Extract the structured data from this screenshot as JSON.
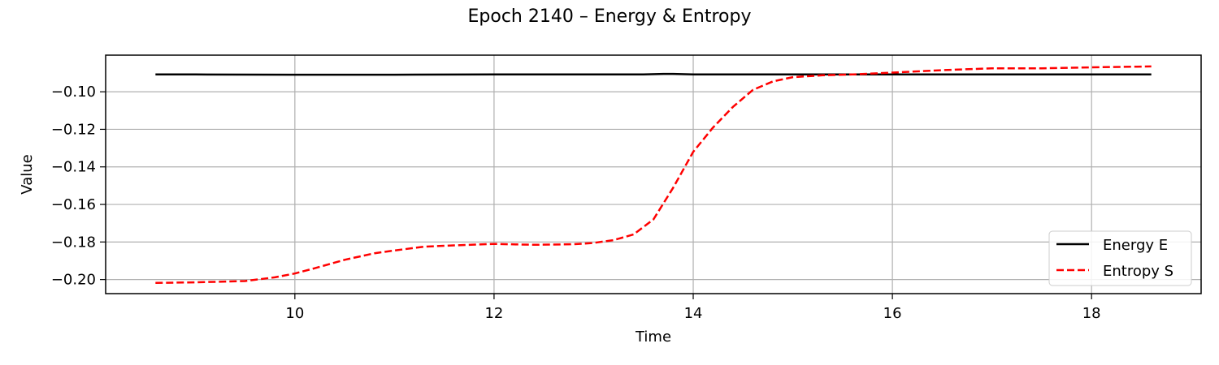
{
  "chart_data": {
    "type": "line",
    "title": "Epoch 2140 – Energy & Entropy",
    "xlabel": "Time",
    "ylabel": "Value",
    "xlim": [
      8.1,
      19.1
    ],
    "ylim": [
      -0.2075,
      -0.0805
    ],
    "xticks": [
      10,
      12,
      14,
      16,
      18
    ],
    "xtick_labels": [
      "10",
      "12",
      "14",
      "16",
      "18"
    ],
    "yticks": [
      -0.2,
      -0.18,
      -0.16,
      -0.14,
      -0.12,
      -0.1
    ],
    "ytick_labels": [
      "−0.20",
      "−0.18",
      "−0.16",
      "−0.14",
      "−0.12",
      "−0.10"
    ],
    "grid": true,
    "legend_position": "lower-right",
    "series": [
      {
        "name": "Energy E",
        "color": "#000000",
        "style": "solid",
        "x": [
          8.6,
          9.0,
          10.0,
          11.0,
          12.0,
          13.0,
          13.5,
          13.7,
          13.8,
          14.0,
          15.0,
          16.0,
          17.0,
          18.0,
          18.6
        ],
        "y": [
          -0.0908,
          -0.0908,
          -0.0909,
          -0.0909,
          -0.0908,
          -0.0908,
          -0.0908,
          -0.0905,
          -0.0905,
          -0.0908,
          -0.0908,
          -0.0908,
          -0.0908,
          -0.0908,
          -0.0908
        ]
      },
      {
        "name": "Entropy S",
        "color": "#ff0000",
        "style": "dashed",
        "x": [
          8.6,
          9.0,
          9.5,
          9.8,
          10.0,
          10.2,
          10.5,
          10.8,
          11.0,
          11.3,
          11.6,
          12.0,
          12.4,
          12.8,
          13.0,
          13.2,
          13.4,
          13.6,
          13.8,
          14.0,
          14.2,
          14.4,
          14.6,
          14.8,
          15.0,
          15.3,
          15.6,
          16.0,
          16.5,
          17.0,
          17.5,
          18.0,
          18.6
        ],
        "y": [
          -0.2018,
          -0.2015,
          -0.2008,
          -0.1988,
          -0.1968,
          -0.194,
          -0.1895,
          -0.186,
          -0.1845,
          -0.1825,
          -0.1818,
          -0.181,
          -0.1815,
          -0.1812,
          -0.1805,
          -0.179,
          -0.176,
          -0.168,
          -0.151,
          -0.132,
          -0.119,
          -0.108,
          -0.099,
          -0.0945,
          -0.0922,
          -0.0912,
          -0.0908,
          -0.0898,
          -0.0885,
          -0.0875,
          -0.0875,
          -0.087,
          -0.0865
        ]
      }
    ]
  }
}
